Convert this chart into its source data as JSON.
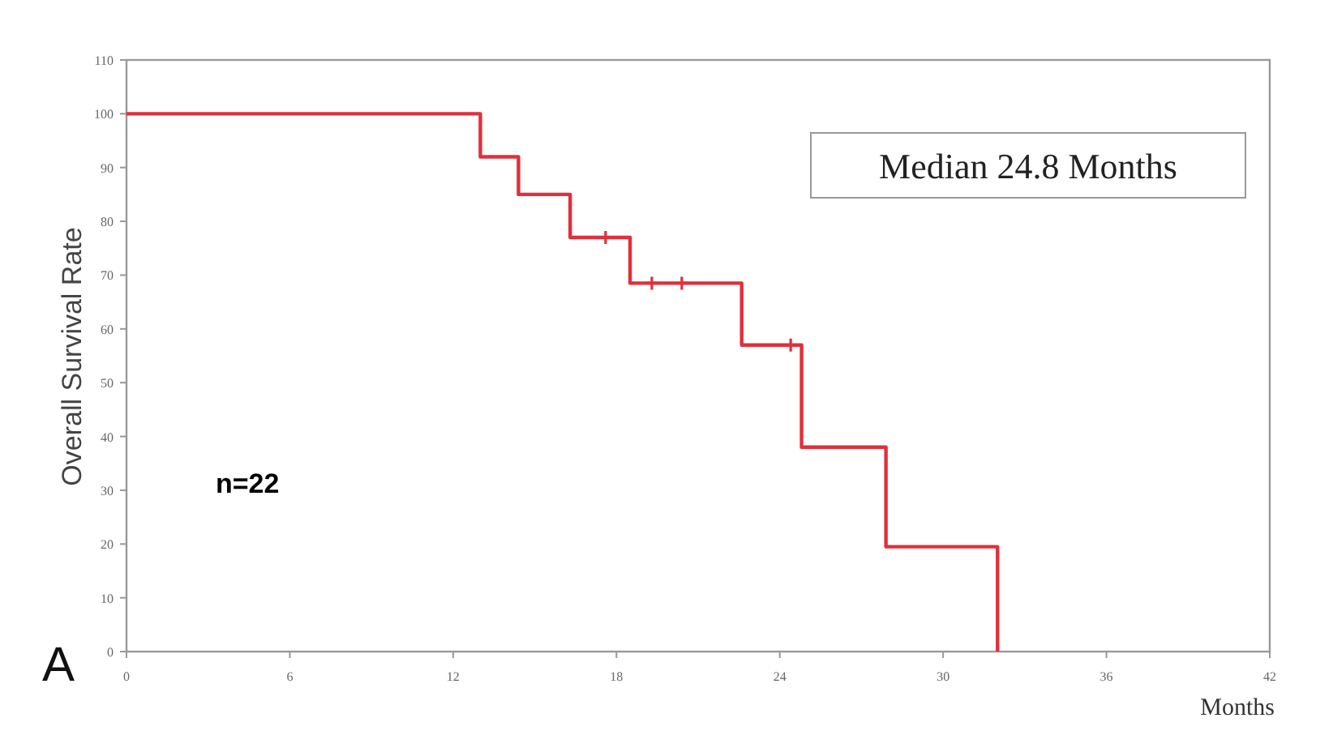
{
  "chart_data": {
    "type": "step",
    "xlabel": "Months",
    "ylabel": "Overall Survival Rate",
    "xlim": [
      0,
      42
    ],
    "xticks": [
      0,
      6,
      12,
      18,
      24,
      30,
      36,
      42
    ],
    "ylim": [
      0,
      110
    ],
    "yticks": [
      0,
      10,
      20,
      30,
      40,
      50,
      60,
      70,
      80,
      90,
      100,
      110
    ],
    "grid": false,
    "series": [
      {
        "color": "#e0303a",
        "x": [
          0,
          13,
          14.4,
          16.3,
          18.5,
          22.6,
          24.8,
          27.9,
          32
        ],
        "values": [
          100,
          92,
          85,
          77,
          68.5,
          57,
          38,
          19.5,
          0
        ]
      },
      {
        "type": "scatter",
        "color": "#e0303a",
        "x": [
          17.6,
          19.3,
          20.4,
          24.4
        ],
        "values": [
          77,
          68.5,
          68.5,
          57
        ],
        "marker": "cross"
      }
    ],
    "annotations": [
      "Median 24.8 Months",
      "n=22",
      "A"
    ]
  }
}
